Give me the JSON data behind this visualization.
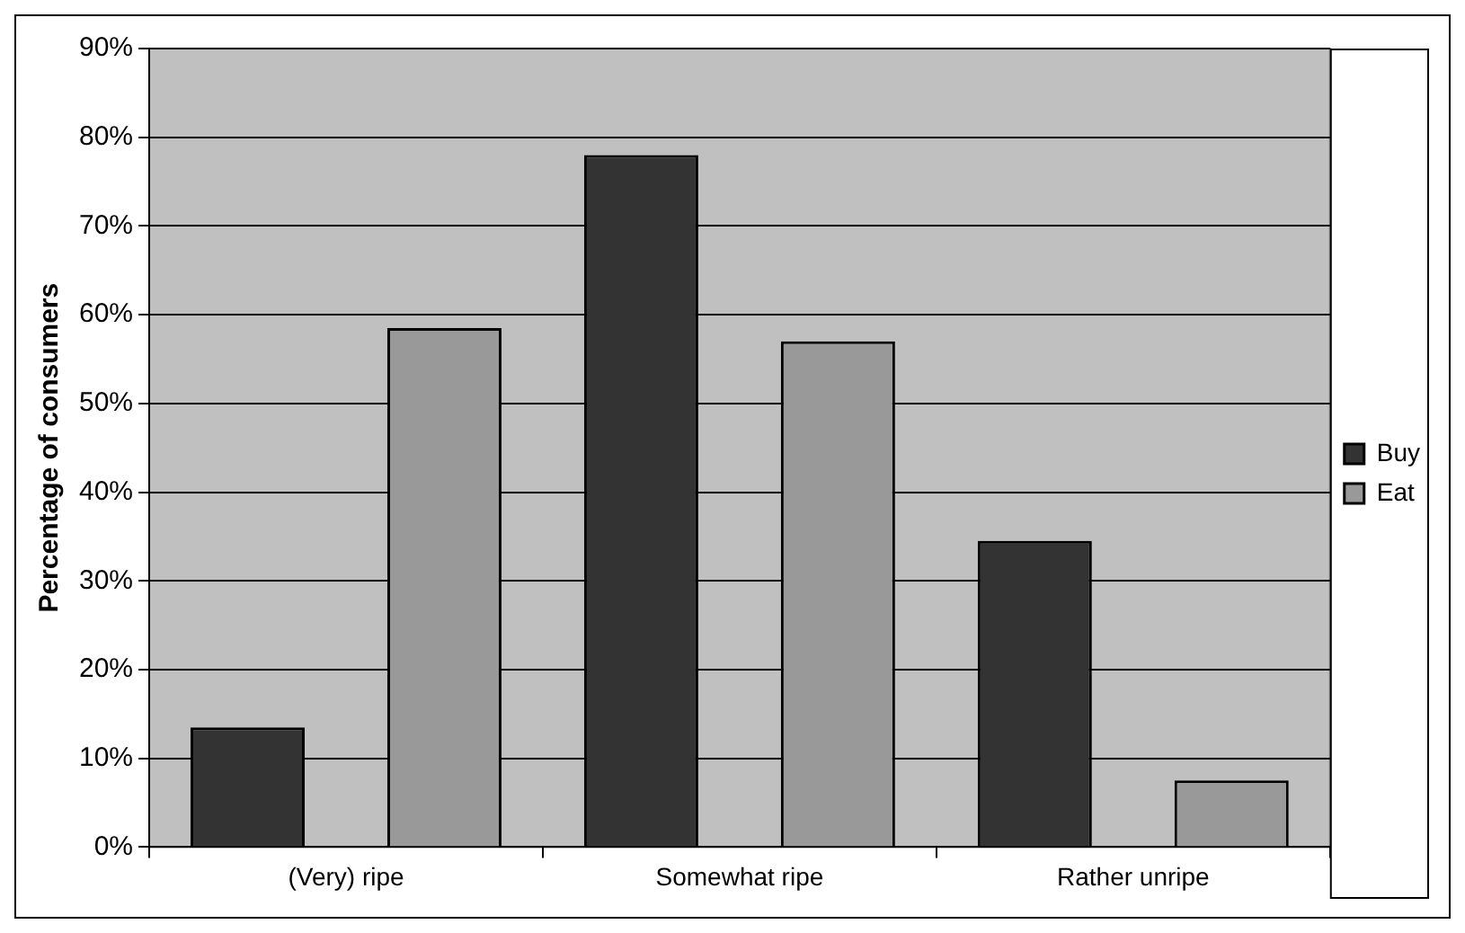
{
  "chart_data": {
    "type": "bar",
    "ylabel": "Percentage of consumers",
    "categories": [
      "(Very) ripe",
      "Somewhat ripe",
      "Rather unripe"
    ],
    "series": [
      {
        "name": "Buy",
        "color": "#333333",
        "values": [
          13.5,
          78,
          34.5
        ]
      },
      {
        "name": "Eat",
        "color": "#999999",
        "values": [
          58.5,
          57,
          7.5
        ]
      }
    ],
    "ylim": [
      0,
      90
    ],
    "yticks": [
      {
        "value": 0,
        "label": "0%"
      },
      {
        "value": 10,
        "label": "10%"
      },
      {
        "value": 20,
        "label": "20%"
      },
      {
        "value": 30,
        "label": "30%"
      },
      {
        "value": 40,
        "label": "40%"
      },
      {
        "value": 50,
        "label": "50%"
      },
      {
        "value": 60,
        "label": "60%"
      },
      {
        "value": 70,
        "label": "70%"
      },
      {
        "value": 80,
        "label": "80%"
      },
      {
        "value": 90,
        "label": "90%"
      }
    ],
    "grid": "y",
    "legend": "right"
  }
}
